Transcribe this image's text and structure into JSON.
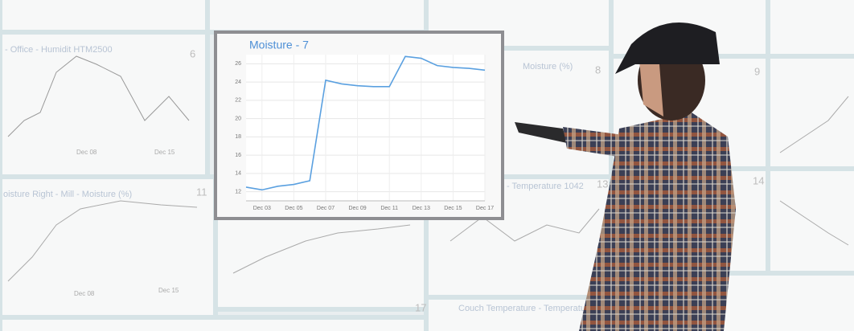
{
  "chart_data": {
    "type": "line",
    "title": "Moisture - 7",
    "categories": [
      null,
      "Dec 03",
      null,
      "Dec 05",
      null,
      "Dec 07",
      null,
      "Dec 09",
      null,
      "Dec 11",
      null,
      "Dec 13",
      null,
      "Dec 15",
      null,
      "Dec 17"
    ],
    "series": [
      {
        "name": "Moisture",
        "color": "#5aa0e0",
        "values": [
          12.5,
          12.2,
          12.6,
          12.8,
          13.2,
          24.2,
          23.8,
          23.6,
          23.5,
          23.5,
          26.8,
          26.6,
          25.8,
          25.6,
          25.5,
          25.3
        ]
      }
    ],
    "ylim": [
      11,
      27
    ],
    "yticks": [
      12,
      14,
      16,
      18,
      20,
      22,
      24,
      26
    ],
    "grid": true
  },
  "background_tiles": [
    {
      "title": "- Office - Humidit HTM2500",
      "number": "6",
      "dates": [
        "Dec 08",
        "Dec 15"
      ]
    },
    {
      "title": "oisture Right - Mill - Moisture (%)",
      "number": "11",
      "dates": [
        "Dec 08",
        "Dec 15"
      ]
    },
    {
      "title": "Moisture (%)",
      "number": "8"
    },
    {
      "title": "9"
    },
    {
      "title": "- Temperature 1042",
      "number": "13"
    },
    {
      "title": "14"
    },
    {
      "title": "Couch Temperature - Temperature 1042",
      "number": "17"
    }
  ]
}
